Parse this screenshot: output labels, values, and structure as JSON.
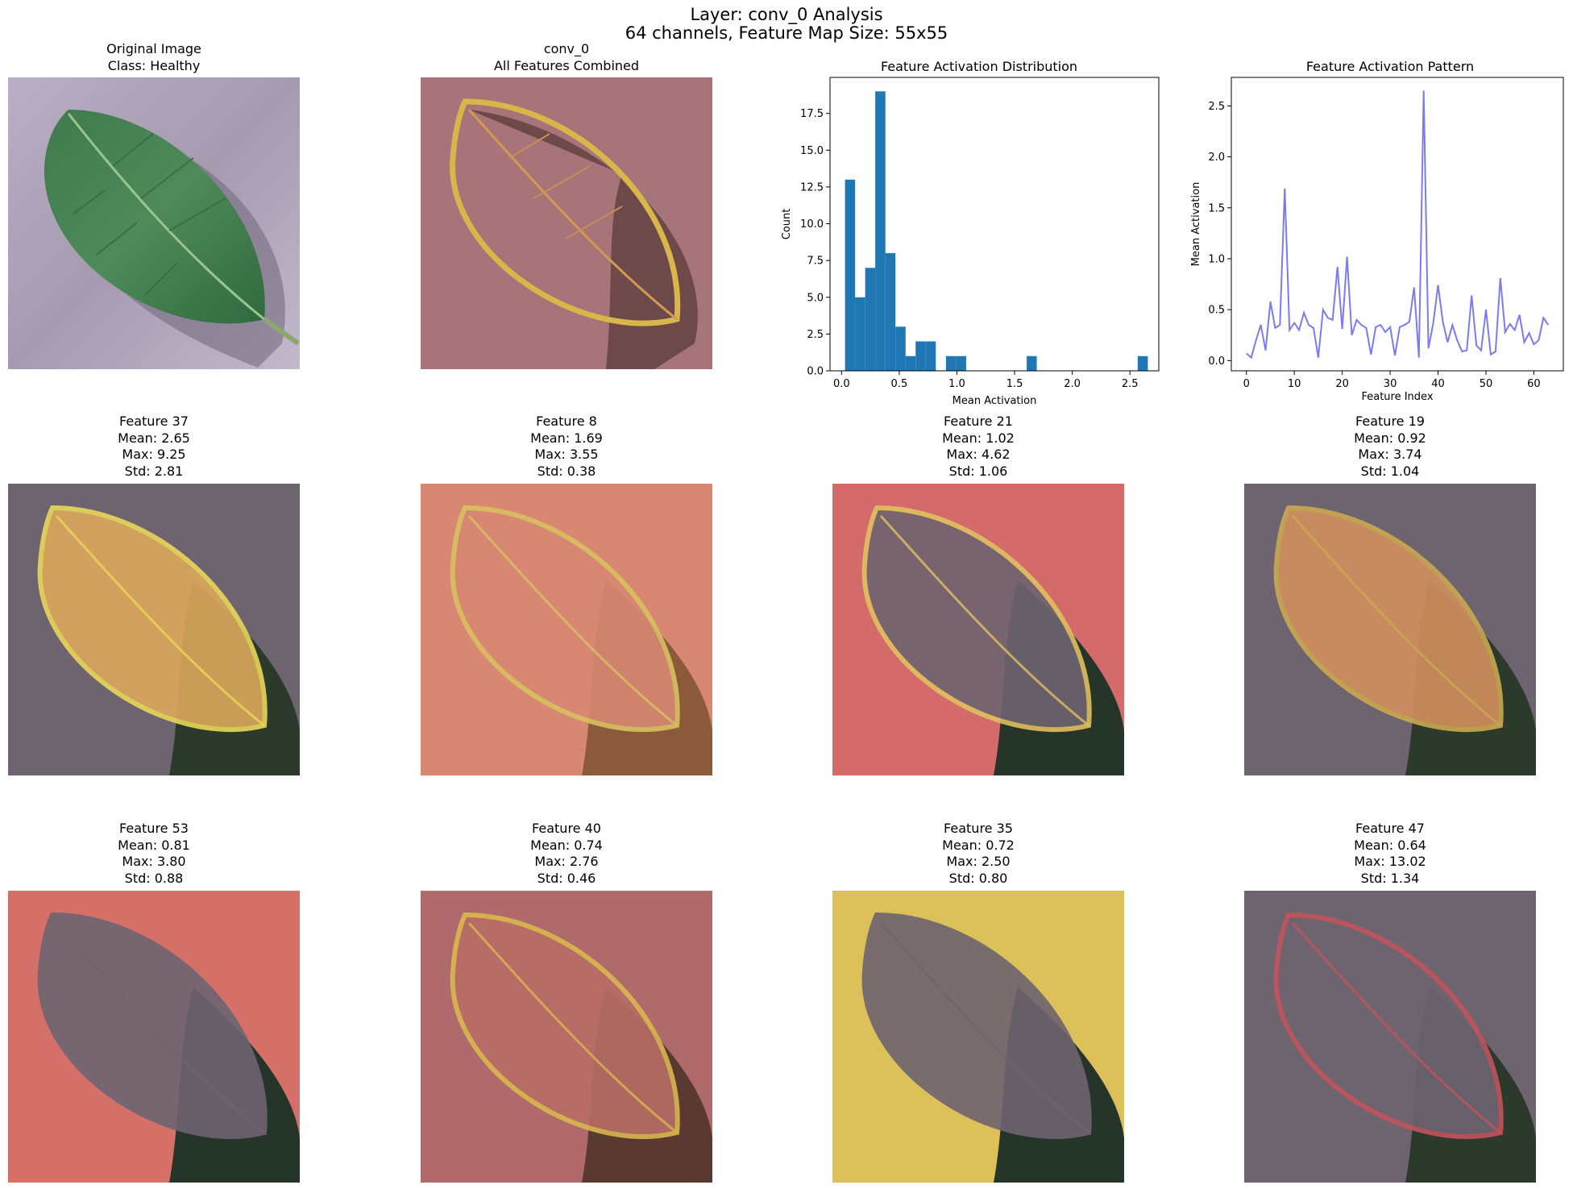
{
  "figure": {
    "title_line1": "Layer: conv_0 Analysis",
    "title_line2": "64 channels, Feature Map Size: 55x55"
  },
  "images": {
    "original": {
      "title_line1": "Original Image",
      "title_line2": "Class: Healthy"
    },
    "combined": {
      "title_line1": "conv_0",
      "title_line2": "All Features Combined"
    }
  },
  "features": [
    {
      "title": "Feature 37",
      "mean": "Mean: 2.65",
      "max": "Max: 9.25",
      "std": "Std: 2.81"
    },
    {
      "title": "Feature 8",
      "mean": "Mean: 1.69",
      "max": "Max: 3.55",
      "std": "Std: 0.38"
    },
    {
      "title": "Feature 21",
      "mean": "Mean: 1.02",
      "max": "Max: 4.62",
      "std": "Std: 1.06"
    },
    {
      "title": "Feature 19",
      "mean": "Mean: 0.92",
      "max": "Max: 3.74",
      "std": "Std: 1.04"
    },
    {
      "title": "Feature 53",
      "mean": "Mean: 0.81",
      "max": "Max: 3.80",
      "std": "Std: 0.88"
    },
    {
      "title": "Feature 40",
      "mean": "Mean: 0.74",
      "max": "Max: 2.76",
      "std": "Std: 0.46"
    },
    {
      "title": "Feature 35",
      "mean": "Mean: 0.72",
      "max": "Max: 2.50",
      "std": "Std: 0.80"
    },
    {
      "title": "Feature 47",
      "mean": "Mean: 0.64",
      "max": "Max: 13.02",
      "std": "Std: 1.34"
    }
  ],
  "colors": {
    "bar": "#1f77b4",
    "line": "#7b7bf0"
  },
  "chart_data": [
    {
      "type": "bar",
      "title": "Feature Activation Distribution",
      "xlabel": "Mean Activation",
      "ylabel": "Count",
      "xlim": [
        -0.1,
        2.75
      ],
      "ylim": [
        0,
        19.95
      ],
      "x_ticks": [
        0.0,
        0.5,
        1.0,
        1.5,
        2.0,
        2.5
      ],
      "x_tick_labels": [
        "0.0",
        "0.5",
        "1.0",
        "1.5",
        "2.0",
        "2.5"
      ],
      "y_ticks": [
        0,
        2.5,
        5,
        7.5,
        10,
        12.5,
        15,
        17.5
      ],
      "y_tick_labels": [
        "0.0",
        "2.5",
        "5.0",
        "7.5",
        "10.0",
        "12.5",
        "15.0",
        "17.5"
      ],
      "bin_edges": [
        0.03,
        0.117,
        0.205,
        0.292,
        0.38,
        0.467,
        0.555,
        0.642,
        0.73,
        0.817,
        0.905,
        0.992,
        1.08,
        1.167,
        1.255,
        1.342,
        1.43,
        1.517,
        1.605,
        1.692,
        1.78,
        1.867,
        1.955,
        2.042,
        2.13,
        2.217,
        2.305,
        2.392,
        2.48,
        2.567,
        2.655
      ],
      "counts": [
        13,
        5,
        7,
        19,
        8,
        3,
        1,
        2,
        2,
        0,
        1,
        1,
        0,
        0,
        0,
        0,
        0,
        0,
        1,
        0,
        0,
        0,
        0,
        0,
        0,
        0,
        0,
        0,
        0,
        1
      ]
    },
    {
      "type": "line",
      "title": "Feature Activation Pattern",
      "xlabel": "Feature Index",
      "ylabel": "Mean Activation",
      "xlim": [
        -3.15,
        66.15
      ],
      "ylim": [
        -0.1,
        2.78
      ],
      "x_ticks": [
        0,
        10,
        20,
        30,
        40,
        50,
        60
      ],
      "x_tick_labels": [
        "0",
        "10",
        "20",
        "30",
        "40",
        "50",
        "60"
      ],
      "y_ticks": [
        0.0,
        0.5,
        1.0,
        1.5,
        2.0,
        2.5
      ],
      "y_tick_labels": [
        "0.0",
        "0.5",
        "1.0",
        "1.5",
        "2.0",
        "2.5"
      ],
      "x": [
        0,
        1,
        2,
        3,
        4,
        5,
        6,
        7,
        8,
        9,
        10,
        11,
        12,
        13,
        14,
        15,
        16,
        17,
        18,
        19,
        20,
        21,
        22,
        23,
        24,
        25,
        26,
        27,
        28,
        29,
        30,
        31,
        32,
        33,
        34,
        35,
        36,
        37,
        38,
        39,
        40,
        41,
        42,
        43,
        44,
        45,
        46,
        47,
        48,
        49,
        50,
        51,
        52,
        53,
        54,
        55,
        56,
        57,
        58,
        59,
        60,
        61,
        62,
        63
      ],
      "y": [
        0.07,
        0.03,
        0.2,
        0.35,
        0.1,
        0.58,
        0.32,
        0.35,
        1.69,
        0.3,
        0.37,
        0.3,
        0.47,
        0.35,
        0.32,
        0.03,
        0.5,
        0.42,
        0.4,
        0.92,
        0.31,
        1.02,
        0.25,
        0.4,
        0.35,
        0.32,
        0.06,
        0.33,
        0.35,
        0.28,
        0.33,
        0.05,
        0.33,
        0.35,
        0.38,
        0.72,
        0.03,
        2.65,
        0.12,
        0.37,
        0.74,
        0.38,
        0.18,
        0.35,
        0.2,
        0.09,
        0.1,
        0.64,
        0.15,
        0.1,
        0.5,
        0.06,
        0.09,
        0.81,
        0.28,
        0.36,
        0.3,
        0.45,
        0.18,
        0.27,
        0.16,
        0.2,
        0.42,
        0.35
      ]
    }
  ]
}
